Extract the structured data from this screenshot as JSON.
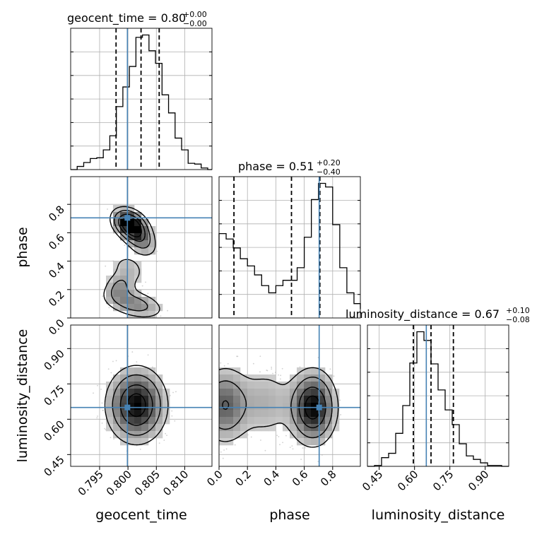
{
  "chart_data": {
    "type": "corner",
    "params": [
      "geocent_time",
      "phase",
      "luminosity_distance"
    ],
    "truths": [
      0.7999,
      0.705,
      0.65
    ],
    "titles": [
      {
        "name": "geocent_time",
        "median": "0.80",
        "plus": "+0.00",
        "minus": "−0.00"
      },
      {
        "name": "phase",
        "median": "0.51",
        "plus": "+0.20",
        "minus": "−0.40"
      },
      {
        "name": "luminosity_distance",
        "median": "0.67",
        "plus": "+0.10",
        "minus": "−0.08"
      }
    ],
    "axes": {
      "geocent_time": {
        "range": [
          0.7899,
          0.8148
        ],
        "ticks": [
          "0.795",
          "0.800",
          "0.805",
          "0.810"
        ],
        "tick_values": [
          0.795,
          0.8,
          0.805,
          0.81
        ]
      },
      "phase": {
        "range": [
          0.0,
          0.995
        ],
        "ticks": [
          "0.0",
          "0.2",
          "0.4",
          "0.6",
          "0.8"
        ],
        "tick_values": [
          0.0,
          0.2,
          0.4,
          0.6,
          0.8
        ]
      },
      "luminosity_distance": {
        "range": [
          0.4,
          1.0
        ],
        "ticks": [
          "0.45",
          "0.60",
          "0.75",
          "0.90"
        ],
        "tick_values": [
          0.45,
          0.6,
          0.75,
          0.9
        ]
      }
    },
    "diagonal_quantiles": [
      [
        0.7979,
        0.8023,
        0.8055
      ],
      [
        0.105,
        0.51,
        0.71
      ],
      [
        0.595,
        0.67,
        0.765
      ]
    ],
    "histograms": [
      {
        "param": "geocent_time",
        "bin_start": 0.7899,
        "bin_width": 0.00115,
        "counts": [
          0,
          4,
          9,
          14,
          15,
          25,
          43,
          80,
          105,
          131,
          168,
          171,
          151,
          135,
          95,
          72,
          40,
          25,
          8,
          7,
          2,
          0
        ]
      },
      {
        "param": "phase",
        "bin_start": 0.0,
        "bin_width": 0.05,
        "counts": [
          47,
          44,
          39,
          33,
          29,
          24,
          18,
          14,
          18,
          21,
          21,
          28,
          45,
          66,
          75,
          73,
          52,
          28,
          14,
          8,
          5
        ]
      },
      {
        "param": "luminosity_distance",
        "bin_start": 0.4,
        "bin_width": 0.03,
        "counts": [
          0,
          1,
          10,
          15,
          38,
          70,
          119,
          155,
          145,
          118,
          88,
          65,
          48,
          26,
          12,
          8,
          4,
          1,
          1,
          0
        ]
      }
    ],
    "grid": true
  },
  "style": {
    "truth_color": "#4682b4",
    "hist_color": "#000000",
    "scatter_color": "#b0b0b0"
  }
}
